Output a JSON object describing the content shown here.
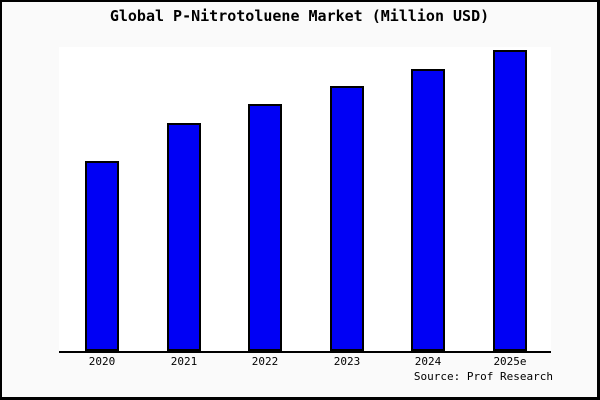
{
  "window": {
    "background": "#fafafa",
    "border_color": "#000000",
    "plot_background": "#ffffff",
    "axis_color": "#000000"
  },
  "chart_data": {
    "type": "bar",
    "title": "Global P-Nitrotoluene Market (Million USD)",
    "categories": [
      "2020",
      "2021",
      "2022",
      "2023",
      "2024",
      "2025e"
    ],
    "values": [
      190,
      228,
      247,
      265,
      282,
      301
    ],
    "value_scale": "relative (no y-axis tick labels shown in chart)",
    "ylim": [
      0,
      304
    ],
    "xlabel": "",
    "ylabel": "",
    "grid": false,
    "legend": false,
    "bar_color": "#0000f5",
    "bar_border_color": "#000000",
    "source_label": "Source: Prof Research"
  }
}
